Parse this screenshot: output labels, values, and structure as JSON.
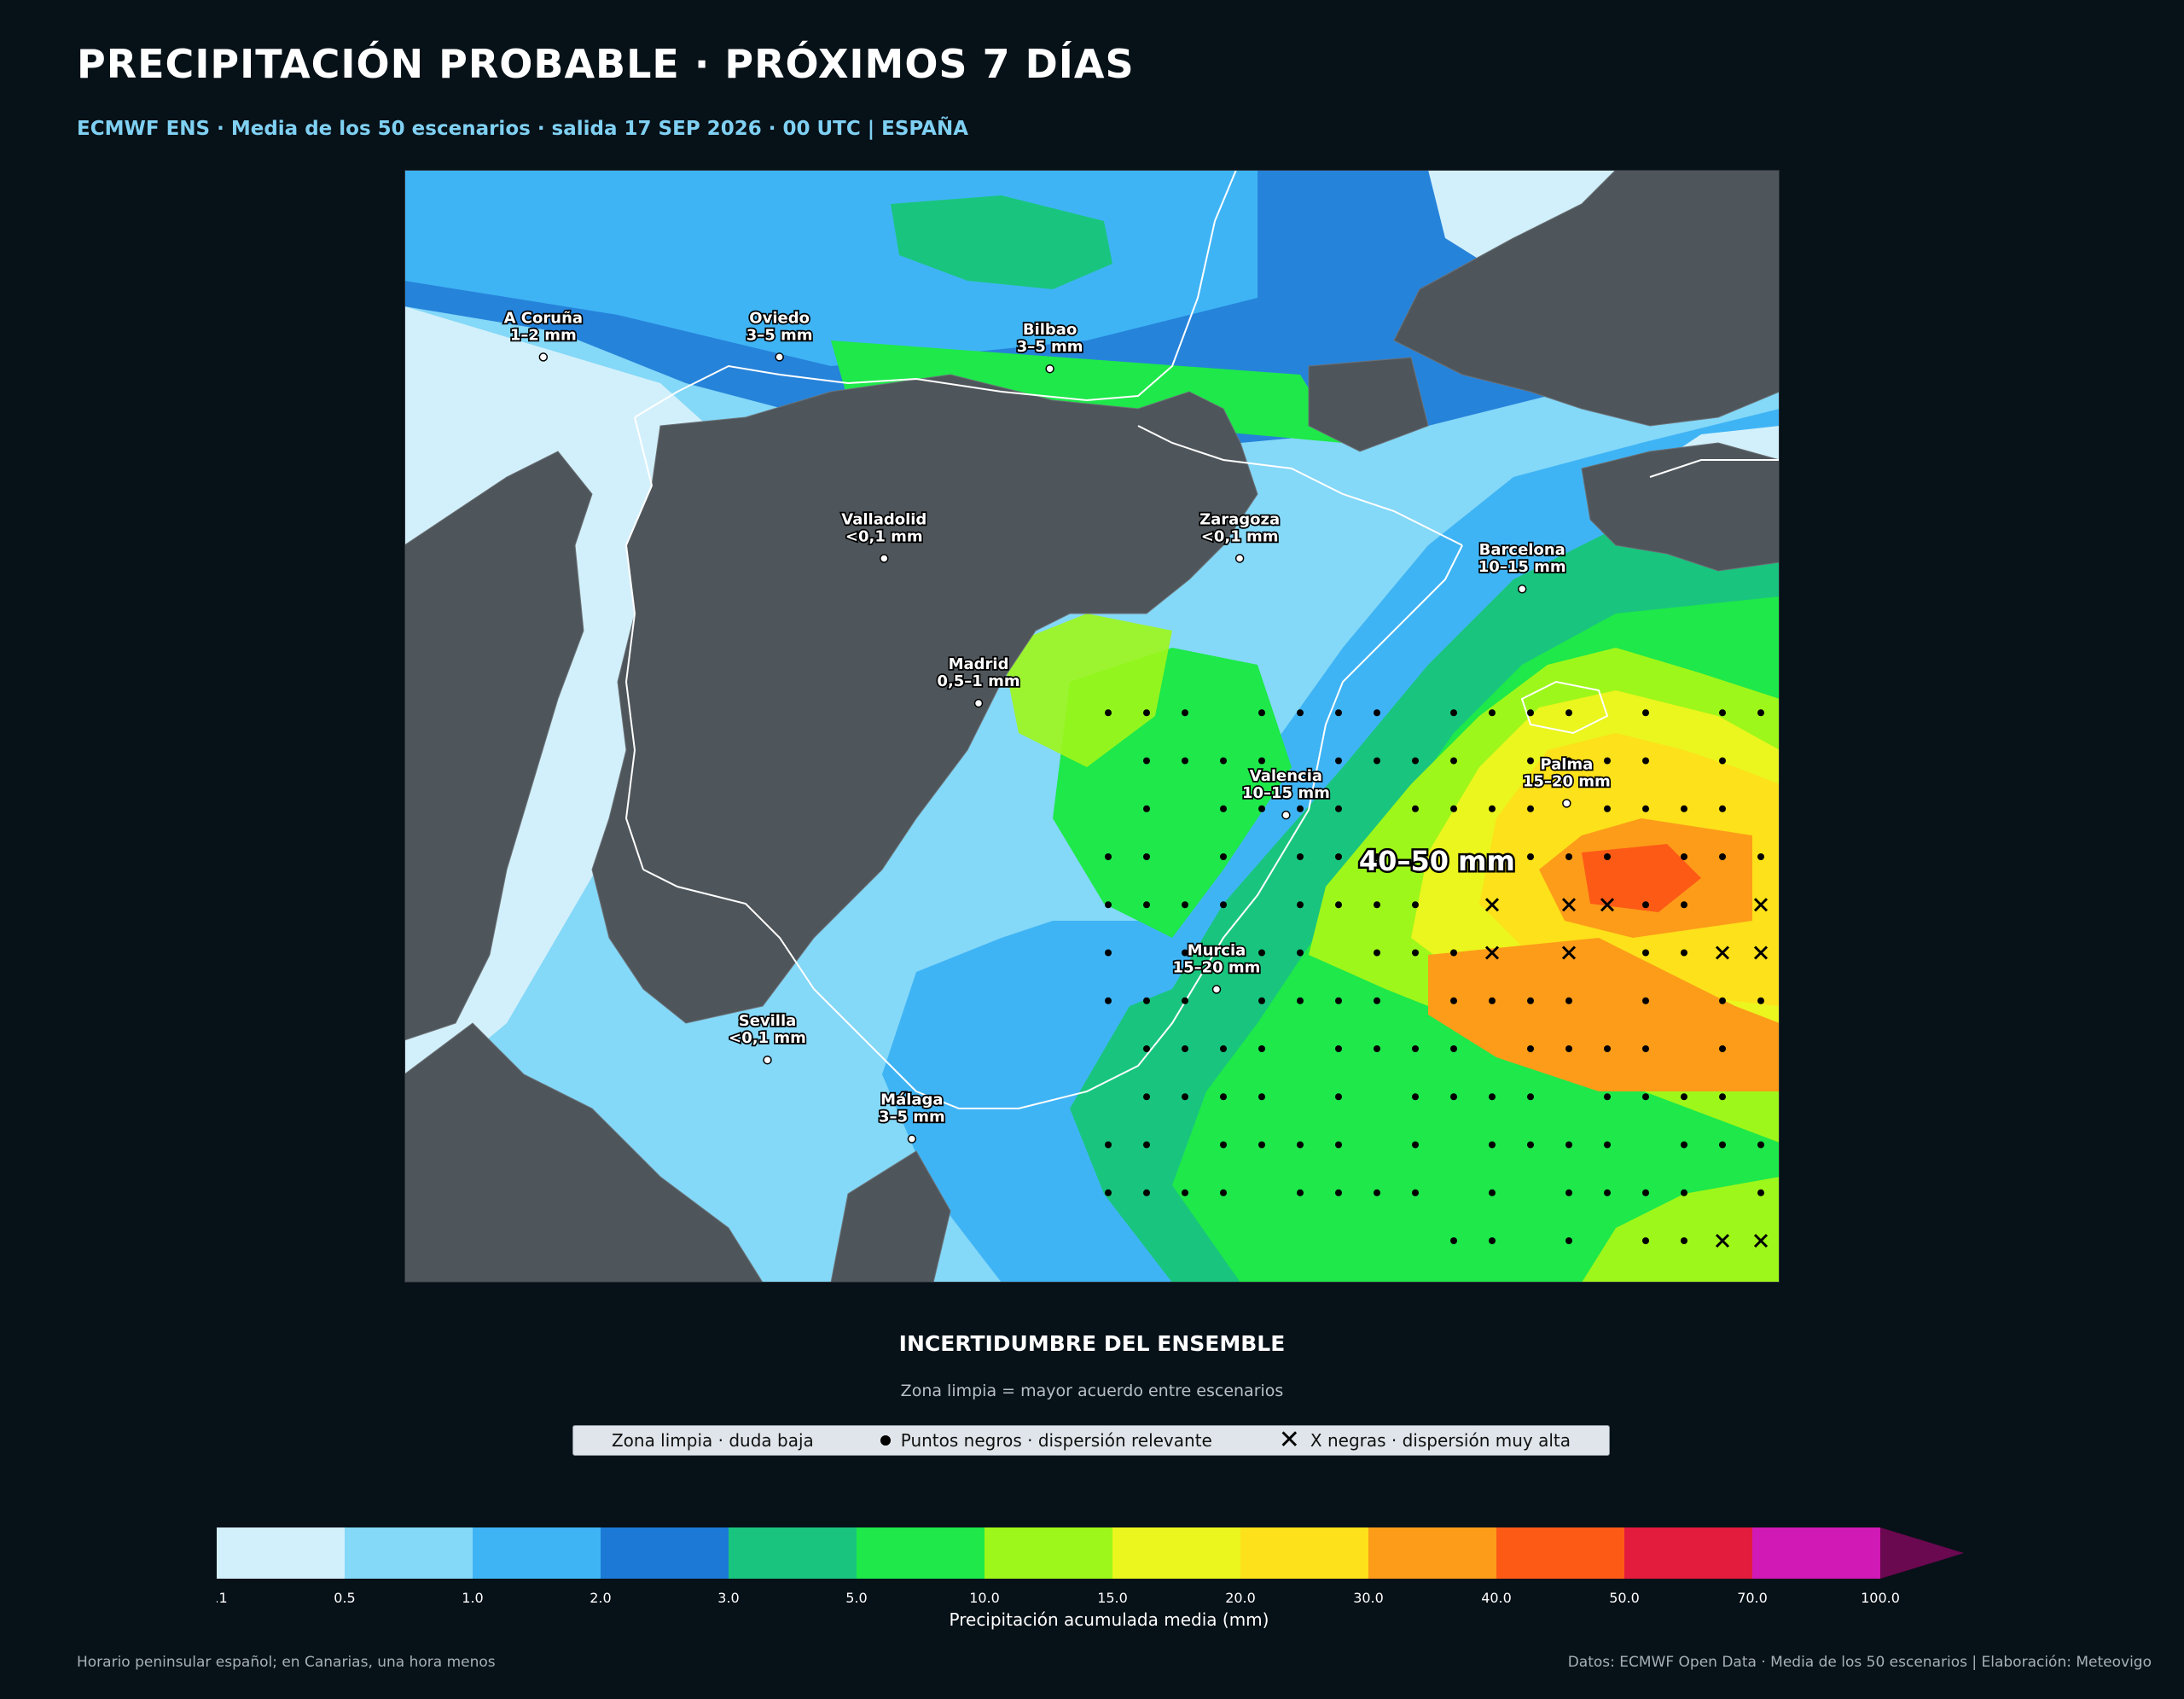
{
  "header": {
    "title": "PRECIPITACIÓN PROBABLE · PRÓXIMOS 7 DÍAS",
    "subtitle": "ECMWF ENS · Media de los 50 escenarios · salida 17 SEP 2026 · 00 UTC | ESPAÑA"
  },
  "map": {
    "cities": [
      {
        "name": "A Coruña",
        "value": "1–2 mm",
        "lon": -8.4,
        "lat": 43.36
      },
      {
        "name": "Oviedo",
        "value": "3–5 mm",
        "lon": -5.85,
        "lat": 43.36
      },
      {
        "name": "Bilbao",
        "value": "3–5 mm",
        "lon": -2.93,
        "lat": 43.26
      },
      {
        "name": "Valladolid",
        "value": "<0,1 mm",
        "lon": -4.72,
        "lat": 41.65
      },
      {
        "name": "Zaragoza",
        "value": "<0,1 mm",
        "lon": -0.88,
        "lat": 41.65
      },
      {
        "name": "Barcelona",
        "value": "10–15 mm",
        "lon": 2.17,
        "lat": 41.39
      },
      {
        "name": "Madrid",
        "value": "0,5–1 mm",
        "lon": -3.7,
        "lat": 40.42
      },
      {
        "name": "Valencia",
        "value": "10–15 mm",
        "lon": -0.38,
        "lat": 39.47
      },
      {
        "name": "Palma",
        "value": "15–20 mm",
        "lon": 2.65,
        "lat": 39.57
      },
      {
        "name": "Sevilla",
        "value": "<0,1 mm",
        "lon": -5.98,
        "lat": 37.39
      },
      {
        "name": "Murcia",
        "value": "15–20 mm",
        "lon": -1.13,
        "lat": 37.99
      },
      {
        "name": "Málaga",
        "value": "3–5 mm",
        "lon": -4.42,
        "lat": 36.72
      }
    ],
    "highlight": {
      "label": "40–50 mm",
      "lon": 1.25,
      "lat": 39.0
    }
  },
  "uncertainty": {
    "title": "INCERTIDUMBRE DEL ENSEMBLE",
    "subtitle": "Zona limpia = mayor acuerdo entre escenarios",
    "legend": {
      "clean": "Zona limpia · duda baja",
      "dots": "Puntos negros · dispersión relevante",
      "crosses": "X negras · dispersión muy alta"
    }
  },
  "colorbar": {
    "label": "Precipitación acumulada media (mm)",
    "ticks": [
      "0.1",
      "0.5",
      "1.0",
      "2.0",
      "3.0",
      "5.0",
      "10.0",
      "15.0",
      "20.0",
      "30.0",
      "40.0",
      "50.0",
      "70.0",
      "100.0"
    ],
    "colors": [
      "#d2f0fb",
      "#84d8f8",
      "#3fb4f5",
      "#1c7ad6",
      "#19c57e",
      "#1ee84a",
      "#9ef71a",
      "#ebf51e",
      "#fde11a",
      "#fd9c19",
      "#fd5a16",
      "#e31b3d",
      "#d119b5"
    ],
    "extend_color": "#6a0850"
  },
  "footer": {
    "left": "Horario peninsular español; en Canarias, una hora menos",
    "right": "Datos: ECMWF Open Data · Media de los 50 escenarios | Elaboración: Meteovigo"
  }
}
